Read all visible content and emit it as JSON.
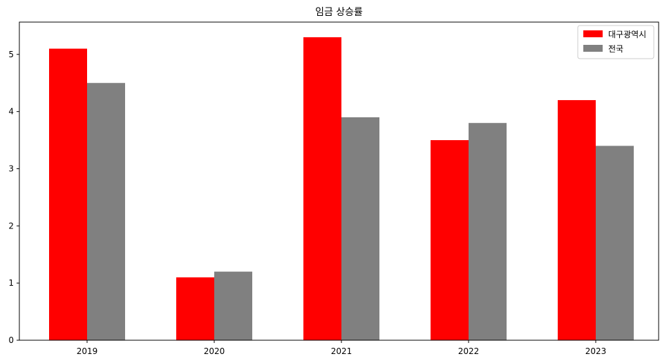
{
  "chart_data": {
    "type": "bar",
    "title": "임금 상승률",
    "xlabel": "",
    "ylabel": "",
    "categories": [
      "2019",
      "2020",
      "2021",
      "2022",
      "2023"
    ],
    "series": [
      {
        "name": "대구광역시",
        "color": "#ff0000",
        "values": [
          5.1,
          1.1,
          5.3,
          3.5,
          4.2
        ]
      },
      {
        "name": "전국",
        "color": "#808080",
        "values": [
          4.5,
          1.2,
          3.9,
          3.8,
          3.4
        ]
      }
    ],
    "ylim": [
      0,
      5.565
    ],
    "yticks": [
      0,
      1,
      2,
      3,
      4,
      5
    ],
    "grid": false,
    "legend": "top-right"
  }
}
